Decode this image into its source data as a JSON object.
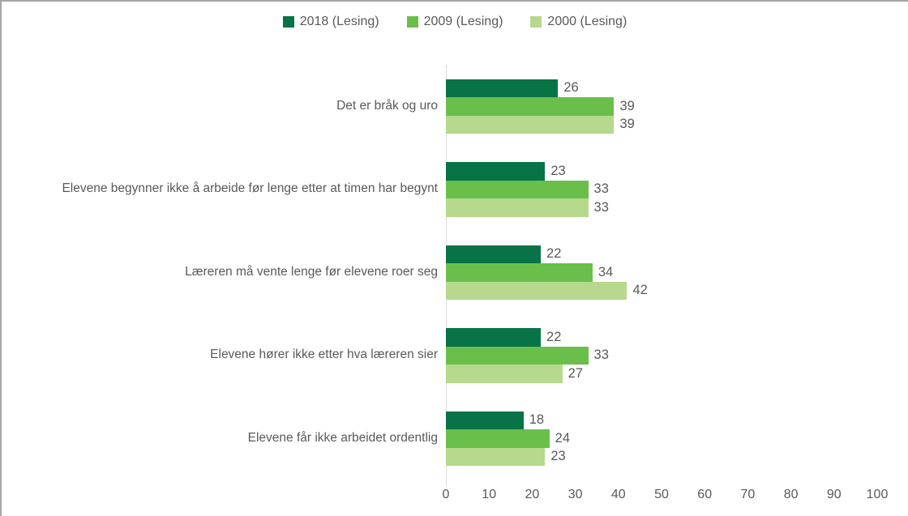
{
  "chart_data": {
    "type": "bar",
    "orientation": "horizontal",
    "title": "",
    "xlabel": "",
    "ylabel": "",
    "categories": [
      "Det er bråk og uro",
      "Elevene begynner ikke å arbeide før lenge etter at timen har begynt",
      "Læreren må vente lenge før elevene roer seg",
      "Elevene hører ikke etter hva læreren sier",
      "Elevene får ikke arbeidet ordentlig"
    ],
    "series": [
      {
        "name": "2018 (Lesing)",
        "color": "#077346",
        "values": [
          26,
          23,
          22,
          22,
          18
        ]
      },
      {
        "name": "2009 (Lesing)",
        "color": "#6abf4a",
        "values": [
          39,
          33,
          34,
          33,
          24
        ]
      },
      {
        "name": "2000 (Lesing)",
        "color": "#b6d98e",
        "values": [
          39,
          33,
          42,
          27,
          23
        ]
      }
    ],
    "xlim": [
      0,
      100
    ],
    "x_ticks": [
      "0",
      "10",
      "20",
      "30",
      "40",
      "50",
      "60",
      "70",
      "80",
      "90",
      "100"
    ],
    "grid": false,
    "legend_position": "top",
    "value_labels": true
  },
  "colors": {
    "text": "#595959",
    "axis_line": "#d9d9d9",
    "background": "#ffffff",
    "frame_border": "#a6a6a6"
  }
}
